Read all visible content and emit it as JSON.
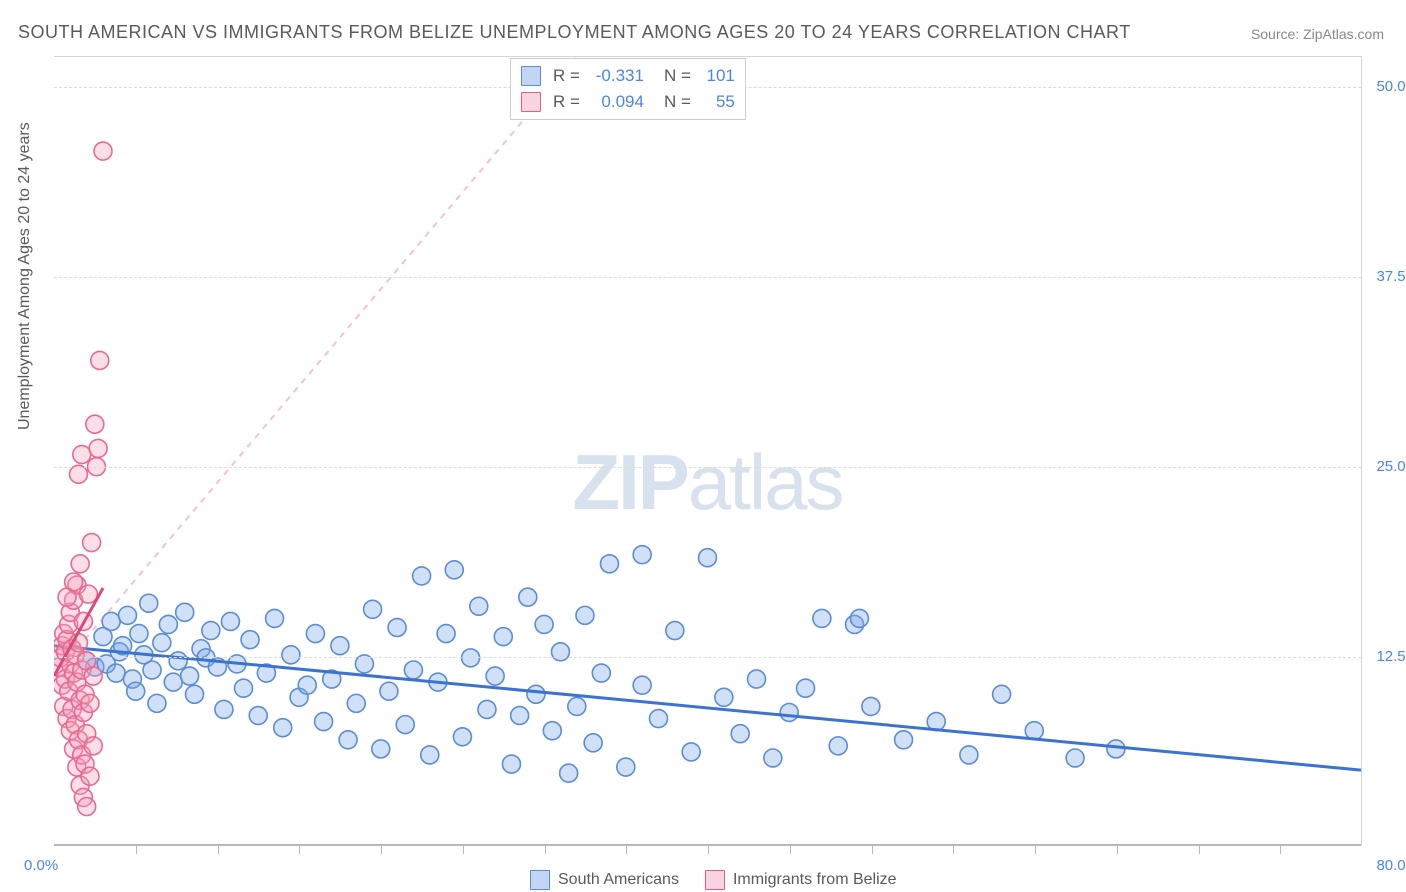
{
  "title": "SOUTH AMERICAN VS IMMIGRANTS FROM BELIZE UNEMPLOYMENT AMONG AGES 20 TO 24 YEARS CORRELATION CHART",
  "source": "Source: ZipAtlas.com",
  "watermark_a": "ZIP",
  "watermark_b": "atlas",
  "ylabel": "Unemployment Among Ages 20 to 24 years",
  "chart": {
    "type": "scatter",
    "xlim": [
      0,
      80
    ],
    "ylim": [
      0,
      52
    ],
    "x_left_label": "0.0%",
    "x_right_label": "80.0%",
    "y_ticks": [
      {
        "v": 12.5,
        "label": "12.5%"
      },
      {
        "v": 25.0,
        "label": "25.0%"
      },
      {
        "v": 37.5,
        "label": "37.5%"
      },
      {
        "v": 50.0,
        "label": "50.0%"
      }
    ],
    "x_tick_positions": [
      5,
      10,
      15,
      20,
      25,
      30,
      35,
      40,
      45,
      50,
      55,
      60,
      65,
      70,
      75
    ],
    "grid_color": "#dcdcdc",
    "background_color": "#ffffff",
    "marker_radius": 9,
    "marker_stroke_width": 1.6,
    "series": [
      {
        "name": "South Americans",
        "color_fill": "rgba(120,165,230,0.35)",
        "color_stroke": "#5b8dd6",
        "R": "-0.331",
        "N": "101",
        "trend": {
          "x1": 0,
          "y1": 13.2,
          "x2": 80,
          "y2": 5.0,
          "stroke": "#3b73d1",
          "width": 3,
          "dash": "none"
        },
        "trend_ext": {
          "x1": 0,
          "y1": 13.2,
          "x2": 80,
          "y2": 5.0,
          "stroke": "rgba(90,140,210,0.35)",
          "width": 2,
          "dash": "6 6"
        },
        "points": [
          [
            2,
            12.2
          ],
          [
            2.5,
            11.8
          ],
          [
            3,
            13.8
          ],
          [
            3.2,
            12.0
          ],
          [
            3.5,
            14.8
          ],
          [
            3.8,
            11.4
          ],
          [
            4,
            12.8
          ],
          [
            4.2,
            13.2
          ],
          [
            4.5,
            15.2
          ],
          [
            4.8,
            11.0
          ],
          [
            5,
            10.2
          ],
          [
            5.2,
            14.0
          ],
          [
            5.5,
            12.6
          ],
          [
            5.8,
            16.0
          ],
          [
            6,
            11.6
          ],
          [
            6.3,
            9.4
          ],
          [
            6.6,
            13.4
          ],
          [
            7,
            14.6
          ],
          [
            7.3,
            10.8
          ],
          [
            7.6,
            12.2
          ],
          [
            8,
            15.4
          ],
          [
            8.3,
            11.2
          ],
          [
            8.6,
            10.0
          ],
          [
            9,
            13.0
          ],
          [
            9.3,
            12.4
          ],
          [
            9.6,
            14.2
          ],
          [
            10,
            11.8
          ],
          [
            10.4,
            9.0
          ],
          [
            10.8,
            14.8
          ],
          [
            11.2,
            12.0
          ],
          [
            11.6,
            10.4
          ],
          [
            12,
            13.6
          ],
          [
            12.5,
            8.6
          ],
          [
            13,
            11.4
          ],
          [
            13.5,
            15.0
          ],
          [
            14,
            7.8
          ],
          [
            14.5,
            12.6
          ],
          [
            15,
            9.8
          ],
          [
            15.5,
            10.6
          ],
          [
            16,
            14.0
          ],
          [
            16.5,
            8.2
          ],
          [
            17,
            11.0
          ],
          [
            17.5,
            13.2
          ],
          [
            18,
            7.0
          ],
          [
            18.5,
            9.4
          ],
          [
            19,
            12.0
          ],
          [
            19.5,
            15.6
          ],
          [
            20,
            6.4
          ],
          [
            20.5,
            10.2
          ],
          [
            21,
            14.4
          ],
          [
            21.5,
            8.0
          ],
          [
            22,
            11.6
          ],
          [
            22.5,
            17.8
          ],
          [
            23,
            6.0
          ],
          [
            23.5,
            10.8
          ],
          [
            24,
            14.0
          ],
          [
            24.5,
            18.2
          ],
          [
            25,
            7.2
          ],
          [
            25.5,
            12.4
          ],
          [
            26,
            15.8
          ],
          [
            26.5,
            9.0
          ],
          [
            27,
            11.2
          ],
          [
            27.5,
            13.8
          ],
          [
            28,
            5.4
          ],
          [
            28.5,
            8.6
          ],
          [
            29,
            16.4
          ],
          [
            29.5,
            10.0
          ],
          [
            30,
            14.6
          ],
          [
            30.5,
            7.6
          ],
          [
            31,
            12.8
          ],
          [
            31.5,
            4.8
          ],
          [
            32,
            9.2
          ],
          [
            32.5,
            15.2
          ],
          [
            33,
            6.8
          ],
          [
            33.5,
            11.4
          ],
          [
            34,
            18.6
          ],
          [
            35,
            5.2
          ],
          [
            36,
            10.6
          ],
          [
            37,
            8.4
          ],
          [
            38,
            14.2
          ],
          [
            39,
            6.2
          ],
          [
            40,
            19.0
          ],
          [
            41,
            9.8
          ],
          [
            42,
            7.4
          ],
          [
            43,
            11.0
          ],
          [
            44,
            5.8
          ],
          [
            45,
            8.8
          ],
          [
            46,
            10.4
          ],
          [
            47,
            15.0
          ],
          [
            48,
            6.6
          ],
          [
            49,
            14.6
          ],
          [
            49.3,
            15.0
          ],
          [
            50,
            9.2
          ],
          [
            52,
            7.0
          ],
          [
            54,
            8.2
          ],
          [
            56,
            6.0
          ],
          [
            58,
            10.0
          ],
          [
            60,
            7.6
          ],
          [
            62.5,
            5.8
          ],
          [
            65,
            6.4
          ],
          [
            36,
            19.2
          ]
        ]
      },
      {
        "name": "Immigrants from Belize",
        "color_fill": "rgba(245,160,185,0.35)",
        "color_stroke": "#e86a92",
        "R": "0.094",
        "N": "55",
        "trend": {
          "x1": 0,
          "y1": 11.2,
          "x2": 3.0,
          "y2": 17.0,
          "stroke": "#d94a78",
          "width": 3,
          "dash": "none"
        },
        "trend_ext": {
          "x1": 0,
          "y1": 11.2,
          "x2": 32,
          "y2": 52,
          "stroke": "rgba(230,120,155,0.45)",
          "width": 2,
          "dash": "6 6"
        },
        "points": [
          [
            0.3,
            11.8
          ],
          [
            0.4,
            12.4
          ],
          [
            0.5,
            10.6
          ],
          [
            0.5,
            13.2
          ],
          [
            0.6,
            9.2
          ],
          [
            0.6,
            14.0
          ],
          [
            0.7,
            11.0
          ],
          [
            0.7,
            12.8
          ],
          [
            0.8,
            8.4
          ],
          [
            0.8,
            13.6
          ],
          [
            0.9,
            10.2
          ],
          [
            0.9,
            14.6
          ],
          [
            1.0,
            7.6
          ],
          [
            1.0,
            12.0
          ],
          [
            1.0,
            15.4
          ],
          [
            1.1,
            9.0
          ],
          [
            1.1,
            13.0
          ],
          [
            1.2,
            6.4
          ],
          [
            1.2,
            11.4
          ],
          [
            1.2,
            16.2
          ],
          [
            1.3,
            8.0
          ],
          [
            1.3,
            12.6
          ],
          [
            1.4,
            5.2
          ],
          [
            1.4,
            10.8
          ],
          [
            1.4,
            17.2
          ],
          [
            1.5,
            7.0
          ],
          [
            1.5,
            13.4
          ],
          [
            1.6,
            4.0
          ],
          [
            1.6,
            9.6
          ],
          [
            1.6,
            18.6
          ],
          [
            1.7,
            6.0
          ],
          [
            1.7,
            11.6
          ],
          [
            1.8,
            3.2
          ],
          [
            1.8,
            8.8
          ],
          [
            1.8,
            14.8
          ],
          [
            1.9,
            5.4
          ],
          [
            1.9,
            10.0
          ],
          [
            2.0,
            2.6
          ],
          [
            2.0,
            7.4
          ],
          [
            2.0,
            12.2
          ],
          [
            2.1,
            16.6
          ],
          [
            2.2,
            4.6
          ],
          [
            2.2,
            9.4
          ],
          [
            2.3,
            20.0
          ],
          [
            2.4,
            6.6
          ],
          [
            2.4,
            11.2
          ],
          [
            2.6,
            25.0
          ],
          [
            2.7,
            26.2
          ],
          [
            2.5,
            27.8
          ],
          [
            2.8,
            32.0
          ],
          [
            1.5,
            24.5
          ],
          [
            1.7,
            25.8
          ],
          [
            0.8,
            16.4
          ],
          [
            1.2,
            17.4
          ],
          [
            3.0,
            45.8
          ]
        ]
      }
    ]
  },
  "bottom_legend": [
    {
      "label": "South Americans",
      "swatch": "blue"
    },
    {
      "label": "Immigrants from Belize",
      "swatch": "pink"
    }
  ]
}
